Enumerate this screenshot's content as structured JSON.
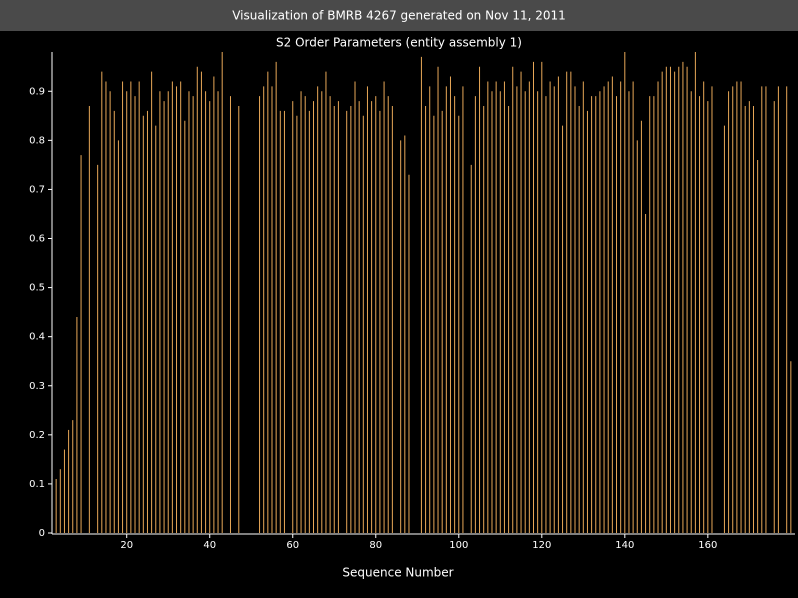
{
  "chart_data": {
    "type": "bar",
    "title": "Visualization of BMRB 4267 generated on Nov 11, 2011",
    "subtitle": "S2 Order Parameters (entity assembly 1)",
    "x_label": "Sequence Number",
    "color": "#e8a858",
    "xlim": [
      2,
      181
    ],
    "xticks": [
      20,
      40,
      60,
      80,
      100,
      120,
      140,
      160
    ],
    "ylim": [
      0,
      0.98
    ],
    "yticks": [
      0,
      0.1,
      0.2,
      0.3,
      0.4,
      0.5,
      0.6,
      0.7,
      0.8,
      0.9
    ],
    "x": [
      3,
      4,
      5,
      6,
      7,
      8,
      9,
      11,
      13,
      14,
      15,
      16,
      17,
      18,
      19,
      20,
      21,
      22,
      23,
      24,
      25,
      26,
      27,
      28,
      29,
      30,
      31,
      32,
      33,
      34,
      35,
      36,
      37,
      38,
      39,
      40,
      41,
      42,
      43,
      45,
      47,
      52,
      53,
      54,
      55,
      56,
      57,
      58,
      60,
      61,
      62,
      63,
      64,
      65,
      66,
      67,
      68,
      69,
      70,
      71,
      73,
      74,
      75,
      76,
      77,
      78,
      79,
      80,
      81,
      82,
      83,
      84,
      86,
      87,
      88,
      91,
      92,
      93,
      94,
      95,
      96,
      97,
      98,
      99,
      100,
      101,
      103,
      104,
      105,
      106,
      107,
      108,
      109,
      110,
      111,
      112,
      113,
      114,
      115,
      116,
      117,
      118,
      119,
      120,
      121,
      122,
      123,
      124,
      125,
      126,
      127,
      128,
      129,
      130,
      131,
      132,
      133,
      134,
      135,
      136,
      137,
      138,
      139,
      140,
      141,
      142,
      143,
      144,
      145,
      146,
      147,
      148,
      149,
      150,
      151,
      152,
      153,
      154,
      155,
      156,
      157,
      158,
      159,
      160,
      161,
      164,
      165,
      166,
      167,
      168,
      169,
      170,
      171,
      172,
      173,
      174,
      176,
      177,
      179,
      180
    ],
    "values": [
      0.11,
      0.13,
      0.17,
      0.21,
      0.23,
      0.44,
      0.77,
      0.87,
      0.75,
      0.94,
      0.92,
      0.9,
      0.86,
      0.8,
      0.92,
      0.9,
      0.92,
      0.89,
      0.92,
      0.85,
      0.86,
      0.94,
      0.83,
      0.9,
      0.88,
      0.9,
      0.92,
      0.91,
      0.92,
      0.84,
      0.9,
      0.89,
      0.95,
      0.94,
      0.9,
      0.88,
      0.93,
      0.9,
      0.98,
      0.89,
      0.87,
      0.89,
      0.91,
      0.94,
      0.91,
      0.96,
      0.86,
      0.86,
      0.88,
      0.85,
      0.9,
      0.89,
      0.86,
      0.88,
      0.91,
      0.9,
      0.94,
      0.89,
      0.87,
      0.88,
      0.86,
      0.87,
      0.92,
      0.88,
      0.85,
      0.91,
      0.88,
      0.89,
      0.86,
      0.92,
      0.89,
      0.87,
      0.8,
      0.81,
      0.73,
      0.97,
      0.87,
      0.91,
      0.85,
      0.95,
      0.86,
      0.91,
      0.93,
      0.89,
      0.85,
      0.91,
      0.75,
      0.89,
      0.95,
      0.87,
      0.92,
      0.9,
      0.92,
      0.9,
      0.92,
      0.87,
      0.95,
      0.91,
      0.94,
      0.9,
      0.92,
      0.96,
      0.9,
      0.96,
      0.89,
      0.92,
      0.91,
      0.93,
      0.83,
      0.94,
      0.94,
      0.91,
      0.87,
      0.92,
      0.86,
      0.89,
      0.89,
      0.9,
      0.91,
      0.92,
      0.93,
      0.89,
      0.92,
      0.98,
      0.9,
      0.92,
      0.8,
      0.84,
      0.65,
      0.89,
      0.89,
      0.92,
      0.94,
      0.95,
      0.95,
      0.94,
      0.95,
      0.96,
      0.95,
      0.9,
      0.98,
      0.89,
      0.92,
      0.88,
      0.91,
      0.83,
      0.9,
      0.91,
      0.92,
      0.92,
      0.87,
      0.88,
      0.87,
      0.76,
      0.91,
      0.91,
      0.88,
      0.91,
      0.91,
      0.35
    ]
  }
}
